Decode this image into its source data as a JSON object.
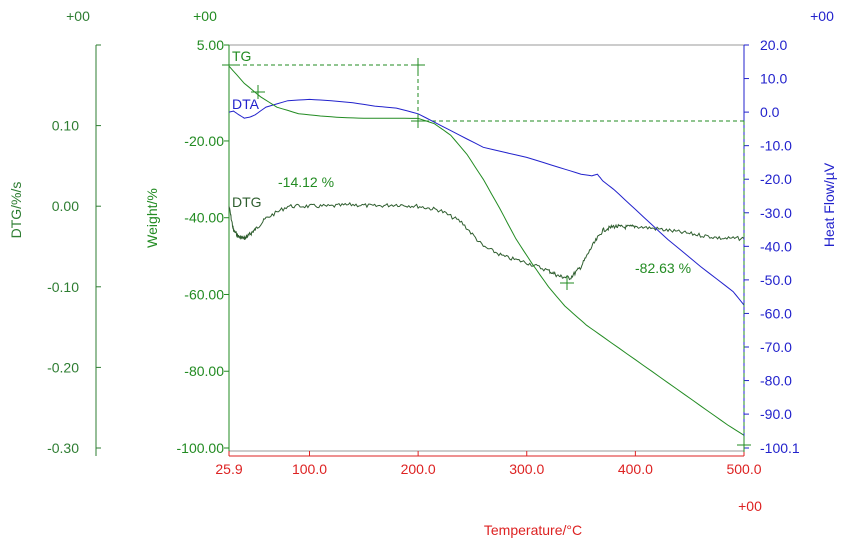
{
  "colors": {
    "tg": "#228b22",
    "dtg": "#2f5e2f",
    "dta": "#2222cc",
    "x_axis": "#dd2222",
    "dtg_axis": "#2e7d32",
    "weight_axis": "#228b22",
    "heat_axis": "#2222cc"
  },
  "chart_data": {
    "type": "line",
    "title": "",
    "xlabel": "Temperature/°C",
    "xlim": [
      25.9,
      500.0
    ],
    "x_ticks": [
      "25.9",
      "100.0",
      "200.0",
      "300.0",
      "400.0",
      "500.0"
    ],
    "x_corner": "+00",
    "axes": {
      "dtg": {
        "label": "DTG/%/s",
        "ylim": [
          -0.3,
          0.2
        ],
        "ticks": [
          "0.10",
          "0.00",
          "-0.10",
          "-0.20",
          "-0.30"
        ],
        "corner": "+00"
      },
      "weight": {
        "label": "Weight/%",
        "ylim": [
          -100,
          5
        ],
        "ticks": [
          "5.00",
          "-20.00",
          "-40.00",
          "-60.00",
          "-80.00",
          "-100.00"
        ],
        "corner": "+00"
      },
      "heat_flow": {
        "label": "Heat Flow/µV",
        "ylim": [
          -100.1,
          20
        ],
        "ticks": [
          "20.0",
          "10.0",
          "0.0",
          "-10.0",
          "-20.0",
          "-30.0",
          "-40.0",
          "-50.0",
          "-60.0",
          "-70.0",
          "-80.0",
          "-90.0",
          "-100.1"
        ],
        "corner": "+00"
      }
    },
    "series": [
      {
        "name": "TG",
        "axis": "weight",
        "x": [
          25.9,
          40,
          55,
          70,
          90,
          110,
          130,
          150,
          175,
          200,
          215,
          230,
          245,
          260,
          275,
          290,
          305,
          320,
          335,
          345,
          355,
          370,
          400,
          430,
          460,
          485,
          500
        ],
        "y": [
          -0.5,
          -5.0,
          -8.5,
          -11.2,
          -12.9,
          -13.5,
          -13.9,
          -14.1,
          -14.1,
          -14.12,
          -15.5,
          -18.5,
          -23.5,
          -30.0,
          -37.5,
          -45.5,
          -52.0,
          -58.0,
          -63.0,
          -65.5,
          -68.0,
          -71.0,
          -77.0,
          -83.0,
          -89.0,
          -94.0,
          -96.7
        ]
      },
      {
        "name": "DTA",
        "axis": "heat_flow",
        "x": [
          25.9,
          30,
          35,
          40,
          45,
          50,
          60,
          80,
          100,
          120,
          140,
          160,
          180,
          200,
          230,
          260,
          300,
          330,
          350,
          360,
          365,
          370,
          380,
          400,
          430,
          460,
          490,
          500
        ],
        "y": [
          0.0,
          0.3,
          -0.8,
          -1.8,
          -1.5,
          -0.8,
          1.5,
          3.4,
          3.8,
          3.4,
          2.8,
          1.8,
          1.2,
          -0.5,
          -5.5,
          -10.5,
          -13.5,
          -16.5,
          -18.5,
          -19.0,
          -18.5,
          -20.5,
          -23.0,
          -29.0,
          -38.0,
          -46.0,
          -53.5,
          -57.5
        ]
      },
      {
        "name": "DTG",
        "axis": "dtg",
        "x": [
          25.9,
          30,
          35,
          40,
          45,
          50,
          60,
          80,
          100,
          120,
          140,
          160,
          180,
          200,
          220,
          240,
          260,
          280,
          300,
          320,
          330,
          340,
          350,
          360,
          370,
          380,
          390,
          400,
          420,
          440,
          460,
          480,
          500
        ],
        "y": [
          0.0,
          -0.03,
          -0.038,
          -0.04,
          -0.035,
          -0.029,
          -0.015,
          0.0,
          0.0,
          0.0,
          0.002,
          0.0,
          0.002,
          0.0,
          -0.005,
          -0.02,
          -0.05,
          -0.063,
          -0.07,
          -0.08,
          -0.087,
          -0.089,
          -0.075,
          -0.05,
          -0.03,
          -0.025,
          -0.026,
          -0.025,
          -0.028,
          -0.032,
          -0.036,
          -0.04,
          -0.04
        ]
      }
    ],
    "series_labels": {
      "tg": "TG",
      "dta": "DTA",
      "dtg": "DTG"
    },
    "annotations": [
      {
        "text": "-14.12 %"
      },
      {
        "text": "-82.63 %"
      }
    ]
  }
}
